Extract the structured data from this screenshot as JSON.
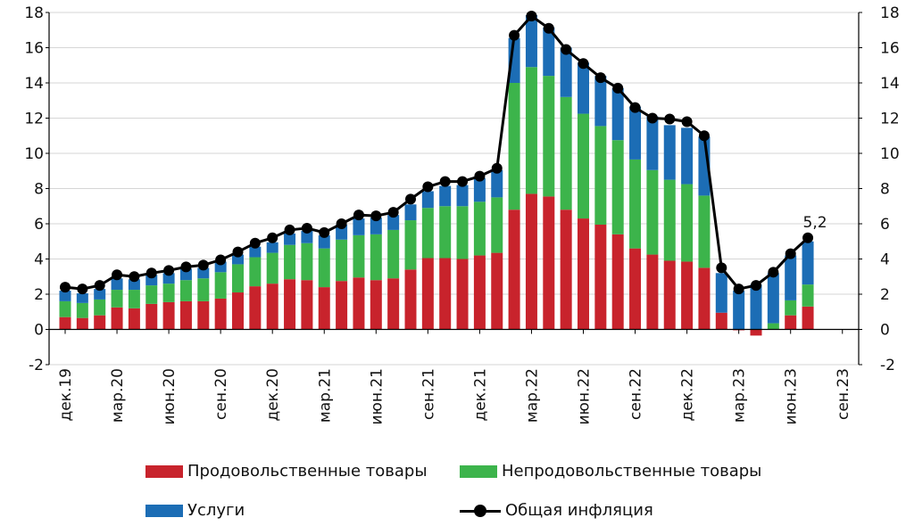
{
  "colors": {
    "food": "#c8232c",
    "nonfood": "#3cb44b",
    "services": "#1c6db5",
    "headline": "#000000"
  },
  "legend": {
    "food": "Продовольственные товары",
    "nonfood": "Непродовольственные товары",
    "services": "Услуги",
    "headline": "Общая инфляция"
  },
  "chart_data": {
    "type": "bar",
    "stacked": true,
    "title": "",
    "xlabel": "",
    "ylabel": "",
    "ylim": [
      -2,
      18
    ],
    "yticks": [
      -2,
      0,
      2,
      4,
      6,
      8,
      10,
      12,
      14,
      16,
      18
    ],
    "grid": true,
    "legend_position": "bottom",
    "x_tick_labels": [
      "дек.19",
      "мар.20",
      "июн.20",
      "сен.20",
      "дек.20",
      "мар.21",
      "июн.21",
      "сен.21",
      "дек.21",
      "мар.22",
      "июн.22",
      "сен.22",
      "дек.22",
      "мар.23",
      "июн.23",
      "сен.23"
    ],
    "categories": [
      "дек.19",
      "янв.20",
      "фев.20",
      "мар.20",
      "апр.20",
      "май.20",
      "июн.20",
      "июл.20",
      "авг.20",
      "сен.20",
      "окт.20",
      "ноя.20",
      "дек.20",
      "янв.21",
      "фев.21",
      "мар.21",
      "апр.21",
      "май.21",
      "июн.21",
      "июл.21",
      "авг.21",
      "сен.21",
      "окт.21",
      "ноя.21",
      "дек.21",
      "янв.22",
      "фев.22",
      "мар.22",
      "апр.22",
      "май.22",
      "июн.22",
      "июл.22",
      "авг.22",
      "сен.22",
      "окт.22",
      "ноя.22",
      "дек.22",
      "янв.23",
      "фев.23",
      "мар.23",
      "апр.23",
      "май.23",
      "июн.23",
      "июл.23"
    ],
    "series": [
      {
        "name": "Продовольственные товары",
        "kind": "bar",
        "values": [
          0.7,
          0.65,
          0.8,
          1.25,
          1.2,
          1.45,
          1.55,
          1.6,
          1.6,
          1.75,
          2.1,
          2.45,
          2.6,
          2.85,
          2.8,
          2.4,
          2.75,
          2.95,
          2.8,
          2.9,
          3.4,
          4.05,
          4.05,
          4.0,
          4.2,
          4.35,
          6.8,
          7.7,
          7.55,
          6.8,
          6.3,
          5.95,
          5.4,
          4.6,
          4.25,
          3.9,
          3.85,
          3.5,
          0.95,
          -0.05,
          -0.35,
          0.0,
          0.8,
          1.3
        ]
      },
      {
        "name": "Непродовольственные товары",
        "kind": "bar",
        "values": [
          0.9,
          0.85,
          0.9,
          1.0,
          1.05,
          1.05,
          1.05,
          1.2,
          1.3,
          1.5,
          1.6,
          1.65,
          1.75,
          1.95,
          2.1,
          2.2,
          2.35,
          2.4,
          2.6,
          2.75,
          2.8,
          2.85,
          2.95,
          3.0,
          3.05,
          3.15,
          7.2,
          7.2,
          6.85,
          6.4,
          5.95,
          5.6,
          5.35,
          5.05,
          4.8,
          4.6,
          4.4,
          4.1,
          0.0,
          0.0,
          0.0,
          0.35,
          0.85,
          1.25
        ]
      },
      {
        "name": "Услуги",
        "kind": "bar",
        "values": [
          0.6,
          0.55,
          0.6,
          0.65,
          0.6,
          0.6,
          0.6,
          0.65,
          0.6,
          0.6,
          0.55,
          0.6,
          0.6,
          0.65,
          0.7,
          0.75,
          0.85,
          0.95,
          0.95,
          0.85,
          0.9,
          0.95,
          1.15,
          1.2,
          1.35,
          1.55,
          2.55,
          2.95,
          2.75,
          2.8,
          2.9,
          2.85,
          2.95,
          3.0,
          3.05,
          3.1,
          3.2,
          3.35,
          2.25,
          2.2,
          2.55,
          2.85,
          2.55,
          2.45
        ]
      },
      {
        "name": "Общая инфляция",
        "kind": "line",
        "values": [
          2.4,
          2.3,
          2.5,
          3.1,
          3.0,
          3.2,
          3.35,
          3.55,
          3.65,
          3.95,
          4.4,
          4.9,
          5.2,
          5.65,
          5.75,
          5.5,
          6.0,
          6.5,
          6.45,
          6.65,
          7.4,
          8.1,
          8.4,
          8.4,
          8.7,
          9.15,
          16.7,
          17.8,
          17.1,
          15.9,
          15.1,
          14.3,
          13.7,
          12.6,
          12.0,
          11.95,
          11.8,
          11.0,
          3.5,
          2.3,
          2.5,
          3.25,
          4.3,
          5.2
        ]
      }
    ],
    "annotation": "5,2"
  }
}
